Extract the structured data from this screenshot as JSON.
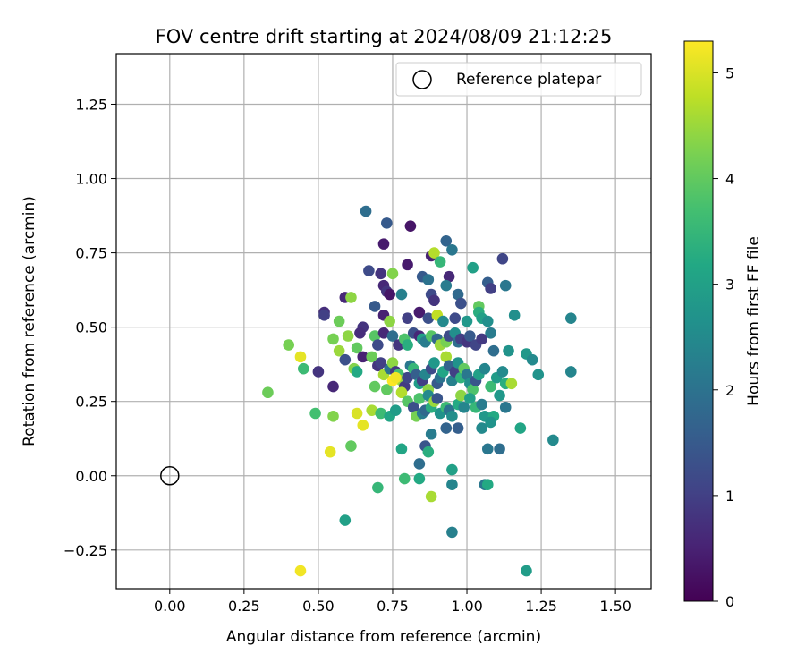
{
  "chart_data": {
    "type": "scatter",
    "title": "FOV centre drift starting at 2024/08/09 21:12:25",
    "xlabel": "Angular distance from reference (arcmin)",
    "ylabel": "Rotation from reference (arcmin)",
    "xlim": [
      -0.18,
      1.62
    ],
    "ylim": [
      -0.38,
      1.42
    ],
    "xticks": [
      "0.00",
      "0.25",
      "0.50",
      "0.75",
      "1.00",
      "1.25",
      "1.50"
    ],
    "yticks": [
      "−0.25",
      "0.00",
      "0.25",
      "0.50",
      "0.75",
      "1.00",
      "1.25"
    ],
    "grid": true,
    "legend": {
      "position": "upper right",
      "entries": [
        "Reference platepar"
      ]
    },
    "colorbar": {
      "label": "Hours from first FF file",
      "min": 0,
      "max": 5.3,
      "ticks": [
        "0",
        "1",
        "2",
        "3",
        "4",
        "5"
      ],
      "colormap": "viridis"
    },
    "reference_point": {
      "x": 0.0,
      "y": 0.0
    },
    "points": [
      [
        0.66,
        0.89,
        1.9
      ],
      [
        0.73,
        0.85,
        1.5
      ],
      [
        0.81,
        0.84,
        0.3
      ],
      [
        0.72,
        0.78,
        0.4
      ],
      [
        0.88,
        0.74,
        0.5
      ],
      [
        0.89,
        0.75,
        4.7
      ],
      [
        0.93,
        0.79,
        1.7
      ],
      [
        0.95,
        0.76,
        2.1
      ],
      [
        0.91,
        0.72,
        3.5
      ],
      [
        1.12,
        0.73,
        1.1
      ],
      [
        1.02,
        0.7,
        3.0
      ],
      [
        0.67,
        0.69,
        1.2
      ],
      [
        0.71,
        0.68,
        0.8
      ],
      [
        0.75,
        0.68,
        4.3
      ],
      [
        0.8,
        0.71,
        0.4
      ],
      [
        0.85,
        0.67,
        1.5
      ],
      [
        0.87,
        0.66,
        2.0
      ],
      [
        0.94,
        0.67,
        0.6
      ],
      [
        1.07,
        0.65,
        1.6
      ],
      [
        1.13,
        0.64,
        2.1
      ],
      [
        0.72,
        0.64,
        0.6
      ],
      [
        0.73,
        0.62,
        0.8
      ],
      [
        0.74,
        0.61,
        0.3
      ],
      [
        0.78,
        0.61,
        2.3
      ],
      [
        0.88,
        0.61,
        1.2
      ],
      [
        0.89,
        0.59,
        0.8
      ],
      [
        0.93,
        0.64,
        2.2
      ],
      [
        0.97,
        0.61,
        1.8
      ],
      [
        0.98,
        0.58,
        1.3
      ],
      [
        1.04,
        0.57,
        4.0
      ],
      [
        1.08,
        0.63,
        1.0
      ],
      [
        0.59,
        0.6,
        0.6
      ],
      [
        0.61,
        0.6,
        4.4
      ],
      [
        0.52,
        0.55,
        0.7
      ],
      [
        0.52,
        0.54,
        1.0
      ],
      [
        0.57,
        0.52,
        4.1
      ],
      [
        0.65,
        0.5,
        0.8
      ],
      [
        0.69,
        0.57,
        1.5
      ],
      [
        0.72,
        0.54,
        0.5
      ],
      [
        0.74,
        0.52,
        4.4
      ],
      [
        0.8,
        0.53,
        1.0
      ],
      [
        0.84,
        0.55,
        0.4
      ],
      [
        0.87,
        0.53,
        1.3
      ],
      [
        0.9,
        0.54,
        4.8
      ],
      [
        0.92,
        0.52,
        2.5
      ],
      [
        0.96,
        0.53,
        1.2
      ],
      [
        1.0,
        0.52,
        2.8
      ],
      [
        1.04,
        0.55,
        3.3
      ],
      [
        1.05,
        0.53,
        3.0
      ],
      [
        1.07,
        0.52,
        2.6
      ],
      [
        1.16,
        0.54,
        2.6
      ],
      [
        1.35,
        0.53,
        2.4
      ],
      [
        0.55,
        0.46,
        4.2
      ],
      [
        0.6,
        0.47,
        4.4
      ],
      [
        0.64,
        0.48,
        0.7
      ],
      [
        0.63,
        0.43,
        4.0
      ],
      [
        0.69,
        0.47,
        3.9
      ],
      [
        0.7,
        0.44,
        1.2
      ],
      [
        0.72,
        0.48,
        0.6
      ],
      [
        0.75,
        0.47,
        1.9
      ],
      [
        0.77,
        0.44,
        0.8
      ],
      [
        0.79,
        0.46,
        3.8
      ],
      [
        0.8,
        0.44,
        3.3
      ],
      [
        0.82,
        0.48,
        1.3
      ],
      [
        0.84,
        0.47,
        0.6
      ],
      [
        0.85,
        0.46,
        3.0
      ],
      [
        0.86,
        0.45,
        2.2
      ],
      [
        0.88,
        0.47,
        3.9
      ],
      [
        0.9,
        0.46,
        1.8
      ],
      [
        0.91,
        0.44,
        4.5
      ],
      [
        0.93,
        0.45,
        4.2
      ],
      [
        0.94,
        0.47,
        1.2
      ],
      [
        0.96,
        0.48,
        2.6
      ],
      [
        0.97,
        0.45,
        1.9
      ],
      [
        0.98,
        0.46,
        1.0
      ],
      [
        1.0,
        0.45,
        0.8
      ],
      [
        1.01,
        0.47,
        1.5
      ],
      [
        1.03,
        0.44,
        1.1
      ],
      [
        1.05,
        0.46,
        0.9
      ],
      [
        1.08,
        0.48,
        2.2
      ],
      [
        1.09,
        0.42,
        1.9
      ],
      [
        1.14,
        0.42,
        2.7
      ],
      [
        1.2,
        0.41,
        2.8
      ],
      [
        1.22,
        0.39,
        2.5
      ],
      [
        0.4,
        0.44,
        4.2
      ],
      [
        0.44,
        0.4,
        5.1
      ],
      [
        0.45,
        0.36,
        3.6
      ],
      [
        0.5,
        0.35,
        0.8
      ],
      [
        0.55,
        0.3,
        0.6
      ],
      [
        0.57,
        0.42,
        4.5
      ],
      [
        0.59,
        0.39,
        1.3
      ],
      [
        0.62,
        0.36,
        4.3
      ],
      [
        0.63,
        0.35,
        3.2
      ],
      [
        0.65,
        0.4,
        0.5
      ],
      [
        0.68,
        0.4,
        4.1
      ],
      [
        0.7,
        0.37,
        0.8
      ],
      [
        0.71,
        0.38,
        1.0
      ],
      [
        0.72,
        0.34,
        4.6
      ],
      [
        0.73,
        0.29,
        4.0
      ],
      [
        0.74,
        0.36,
        2.0
      ],
      [
        0.75,
        0.38,
        4.4
      ],
      [
        0.76,
        0.35,
        0.9
      ],
      [
        0.77,
        0.34,
        3.7
      ],
      [
        0.78,
        0.32,
        4.5
      ],
      [
        0.79,
        0.3,
        0.9
      ],
      [
        0.8,
        0.33,
        1.1
      ],
      [
        0.81,
        0.37,
        2.1
      ],
      [
        0.82,
        0.36,
        3.5
      ],
      [
        0.83,
        0.34,
        1.6
      ],
      [
        0.84,
        0.31,
        2.9
      ],
      [
        0.85,
        0.32,
        1.0
      ],
      [
        0.86,
        0.34,
        2.4
      ],
      [
        0.87,
        0.29,
        4.4
      ],
      [
        0.88,
        0.36,
        1.2
      ],
      [
        0.89,
        0.38,
        2.8
      ],
      [
        0.9,
        0.31,
        1.5
      ],
      [
        0.91,
        0.33,
        2.0
      ],
      [
        0.92,
        0.35,
        3.1
      ],
      [
        0.93,
        0.4,
        4.6
      ],
      [
        0.94,
        0.37,
        1.7
      ],
      [
        0.95,
        0.32,
        2.3
      ],
      [
        0.96,
        0.35,
        1.0
      ],
      [
        0.97,
        0.38,
        2.7
      ],
      [
        0.98,
        0.33,
        3.4
      ],
      [
        0.99,
        0.36,
        4.0
      ],
      [
        1.0,
        0.34,
        2.1
      ],
      [
        1.01,
        0.31,
        2.6
      ],
      [
        1.02,
        0.29,
        3.8
      ],
      [
        1.03,
        0.32,
        1.4
      ],
      [
        1.04,
        0.34,
        3.0
      ],
      [
        1.06,
        0.36,
        2.4
      ],
      [
        1.08,
        0.3,
        3.6
      ],
      [
        1.1,
        0.33,
        2.9
      ],
      [
        1.12,
        0.35,
        2.5
      ],
      [
        1.11,
        0.27,
        2.8
      ],
      [
        1.13,
        0.31,
        3.3
      ],
      [
        1.15,
        0.31,
        4.6
      ],
      [
        1.24,
        0.34,
        2.7
      ],
      [
        1.35,
        0.35,
        2.4
      ],
      [
        0.33,
        0.28,
        4.1
      ],
      [
        0.49,
        0.21,
        3.7
      ],
      [
        0.55,
        0.2,
        4.3
      ],
      [
        0.63,
        0.21,
        5.0
      ],
      [
        0.65,
        0.17,
        5.1
      ],
      [
        0.68,
        0.22,
        4.6
      ],
      [
        0.69,
        0.3,
        4.0
      ],
      [
        0.71,
        0.21,
        3.6
      ],
      [
        0.74,
        0.2,
        3.1
      ],
      [
        0.76,
        0.22,
        2.9
      ],
      [
        0.78,
        0.28,
        4.7
      ],
      [
        0.8,
        0.25,
        3.9
      ],
      [
        0.82,
        0.23,
        1.3
      ],
      [
        0.83,
        0.2,
        4.2
      ],
      [
        0.84,
        0.26,
        3.8
      ],
      [
        0.85,
        0.21,
        2.2
      ],
      [
        0.86,
        0.22,
        1.8
      ],
      [
        0.87,
        0.27,
        2.5
      ],
      [
        0.88,
        0.23,
        3.3
      ],
      [
        0.89,
        0.25,
        4.5
      ],
      [
        0.9,
        0.26,
        1.4
      ],
      [
        0.91,
        0.21,
        2.7
      ],
      [
        0.93,
        0.23,
        3.6
      ],
      [
        0.94,
        0.22,
        2.0
      ],
      [
        0.95,
        0.2,
        2.6
      ],
      [
        0.97,
        0.24,
        3.2
      ],
      [
        0.98,
        0.27,
        4.4
      ],
      [
        0.99,
        0.23,
        2.4
      ],
      [
        1.01,
        0.26,
        3.0
      ],
      [
        1.03,
        0.23,
        3.5
      ],
      [
        1.05,
        0.24,
        2.2
      ],
      [
        1.06,
        0.2,
        2.8
      ],
      [
        1.09,
        0.2,
        3.2
      ],
      [
        1.13,
        0.23,
        2.1
      ],
      [
        0.54,
        0.08,
        5.1
      ],
      [
        0.61,
        0.1,
        4.0
      ],
      [
        0.78,
        0.09,
        3.1
      ],
      [
        0.84,
        0.04,
        1.9
      ],
      [
        0.86,
        0.1,
        1.4
      ],
      [
        0.87,
        0.08,
        3.3
      ],
      [
        0.88,
        0.14,
        2.2
      ],
      [
        0.93,
        0.16,
        1.7
      ],
      [
        0.97,
        0.16,
        1.6
      ],
      [
        1.05,
        0.16,
        2.5
      ],
      [
        1.08,
        0.18,
        2.7
      ],
      [
        1.18,
        0.16,
        3.1
      ],
      [
        1.07,
        0.09,
        2.1
      ],
      [
        1.11,
        0.09,
        1.9
      ],
      [
        1.29,
        0.12,
        2.5
      ],
      [
        0.7,
        -0.04,
        3.5
      ],
      [
        0.79,
        -0.01,
        3.6
      ],
      [
        0.84,
        -0.01,
        3.2
      ],
      [
        0.88,
        -0.07,
        4.6
      ],
      [
        0.95,
        0.02,
        3.0
      ],
      [
        0.95,
        -0.03,
        2.4
      ],
      [
        1.06,
        -0.03,
        2.1
      ],
      [
        1.07,
        -0.03,
        3.2
      ],
      [
        0.59,
        -0.15,
        3.0
      ],
      [
        0.95,
        -0.19,
        2.3
      ],
      [
        0.44,
        -0.32,
        5.2
      ],
      [
        1.2,
        -0.32,
        2.9
      ],
      [
        0.75,
        0.32,
        5.3
      ],
      [
        0.76,
        0.33,
        5.2
      ]
    ]
  }
}
